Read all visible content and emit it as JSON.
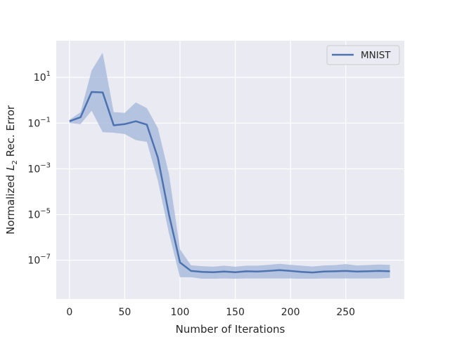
{
  "chart_data": {
    "type": "line",
    "title": "",
    "xlabel": "Number of Iterations",
    "ylabel": "Normalized",
    "ylabel_math": "L",
    "ylabel_sub": "2",
    "ylabel_suffix": " Rec. Error",
    "yscale": "log",
    "xlim": [
      -12,
      303
    ],
    "ylim": [
      2e-09,
      400
    ],
    "xticks": [
      0,
      50,
      100,
      150,
      200,
      250
    ],
    "xtick_labels": [
      "0",
      "50",
      "100",
      "150",
      "200",
      "250"
    ],
    "yticks": [
      1e-07,
      1e-05,
      0.001,
      0.1,
      10
    ],
    "ytick_mantissa": [
      "10",
      "10",
      "10",
      "10",
      "10"
    ],
    "ytick_exponent": [
      "−7",
      "−5",
      "−3",
      "−1",
      "1"
    ],
    "grid": true,
    "legend_position": "top-right",
    "colors": {
      "line": "#4c72b0",
      "band": "#a1b6d8",
      "background": "#eaeaf2",
      "grid": "#ffffff"
    },
    "series": [
      {
        "name": "MNIST",
        "x": [
          0,
          10,
          20,
          30,
          40,
          50,
          60,
          70,
          80,
          90,
          100,
          110,
          120,
          130,
          140,
          150,
          160,
          170,
          180,
          190,
          200,
          210,
          220,
          230,
          240,
          250,
          260,
          270,
          280,
          290
        ],
        "y": [
          0.12,
          0.18,
          2.3,
          2.2,
          0.08,
          0.09,
          0.12,
          0.085,
          0.003,
          1e-05,
          8e-08,
          3.4e-08,
          3.1e-08,
          3e-08,
          3.2e-08,
          3e-08,
          3.3e-08,
          3.2e-08,
          3.4e-08,
          3.7e-08,
          3.4e-08,
          3.1e-08,
          2.9e-08,
          3.2e-08,
          3.3e-08,
          3.4e-08,
          3.2e-08,
          3.3e-08,
          3.4e-08,
          3.3e-08
        ],
        "upper": [
          0.14,
          0.3,
          20,
          120,
          0.3,
          0.28,
          0.8,
          0.45,
          0.06,
          0.0006,
          3e-07,
          6e-08,
          5.5e-08,
          5.2e-08,
          5.8e-08,
          5.2e-08,
          5.8e-08,
          5.8e-08,
          6.3e-08,
          7e-08,
          6.3e-08,
          5.8e-08,
          5.3e-08,
          5.9e-08,
          6.1e-08,
          6.8e-08,
          5.9e-08,
          6.2e-08,
          6.5e-08,
          6.3e-08
        ],
        "lower": [
          0.1,
          0.09,
          0.35,
          0.04,
          0.038,
          0.033,
          0.018,
          0.015,
          0.0003,
          1.5e-06,
          1.8e-08,
          1.8e-08,
          1.55e-08,
          1.55e-08,
          1.6e-08,
          1.55e-08,
          1.6e-08,
          1.6e-08,
          1.6e-08,
          1.6e-08,
          1.6e-08,
          1.55e-08,
          1.55e-08,
          1.6e-08,
          1.6e-08,
          1.6e-08,
          1.6e-08,
          1.6e-08,
          1.6e-08,
          1.7e-08
        ]
      }
    ]
  }
}
